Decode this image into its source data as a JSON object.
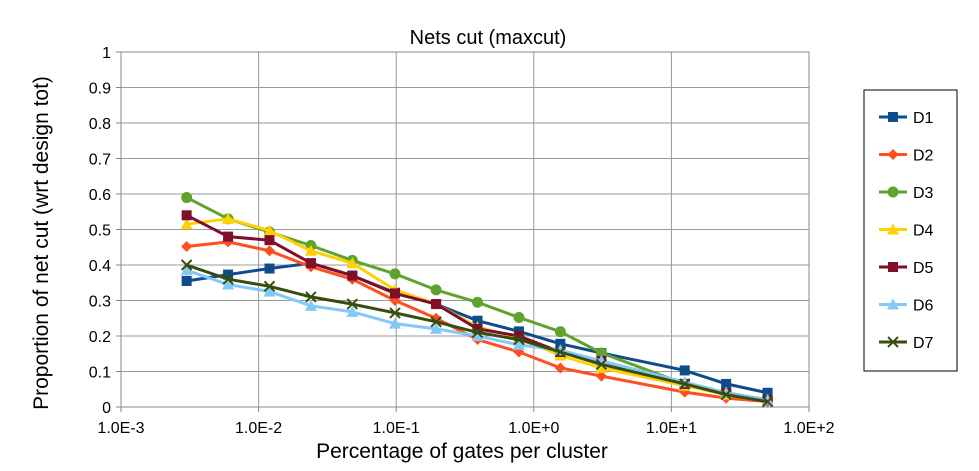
{
  "chart_data": {
    "type": "line",
    "title": "Nets cut (maxcut)",
    "xlabel": "Percentage of gates per cluster",
    "ylabel": "Proportion of net cut (wrt design tot)",
    "x_scale": "log",
    "xlim": [
      0.001,
      100
    ],
    "ylim": [
      0,
      1
    ],
    "x_tick_labels": [
      "1.0E-3",
      "1.0E-2",
      "1.0E-1",
      "1.0E+0",
      "1.0E+1",
      "1.0E+2"
    ],
    "y_tick_labels": [
      "0",
      "0.1",
      "0.2",
      "0.3",
      "0.4",
      "0.5",
      "0.6",
      "0.7",
      "0.8",
      "0.9",
      "1"
    ],
    "grid": true,
    "legend_position": "right",
    "x": [
      0.003,
      0.006,
      0.012,
      0.024,
      0.048,
      0.098,
      0.195,
      0.39,
      0.78,
      1.56,
      3.1,
      12.5,
      25,
      50
    ],
    "series": [
      {
        "name": "D1",
        "color": "#0e4c8c",
        "marker": "square",
        "values": [
          0.355,
          0.373,
          0.39,
          0.405,
          0.37,
          0.322,
          0.29,
          0.243,
          0.213,
          0.178,
          0.152,
          0.103,
          0.065,
          0.04
        ]
      },
      {
        "name": "D2",
        "color": "#ff4e1f",
        "marker": "diamond",
        "values": [
          0.452,
          0.465,
          0.44,
          0.395,
          0.36,
          0.3,
          0.25,
          0.19,
          0.155,
          0.11,
          0.087,
          0.042,
          0.025,
          0.015
        ]
      },
      {
        "name": "D3",
        "color": "#5fa32d",
        "marker": "circle",
        "values": [
          0.59,
          0.53,
          0.493,
          0.455,
          0.413,
          0.375,
          0.33,
          0.295,
          0.252,
          0.212,
          0.152,
          0.065,
          0.04,
          0.02
        ]
      },
      {
        "name": "D4",
        "color": "#ffd100",
        "marker": "triangle",
        "values": [
          0.515,
          0.53,
          0.497,
          0.44,
          0.405,
          0.33,
          0.29,
          0.225,
          0.195,
          0.145,
          0.11,
          0.06,
          0.035,
          0.02
        ]
      },
      {
        "name": "D5",
        "color": "#7f0e2a",
        "marker": "square",
        "values": [
          0.54,
          0.48,
          0.47,
          0.405,
          0.37,
          0.32,
          0.29,
          0.22,
          0.2,
          0.155,
          0.13,
          0.065,
          0.04,
          0.02
        ]
      },
      {
        "name": "D6",
        "color": "#83c9f5",
        "marker": "triangle",
        "values": [
          0.385,
          0.345,
          0.325,
          0.285,
          0.268,
          0.235,
          0.22,
          0.2,
          0.175,
          0.16,
          0.13,
          0.07,
          0.04,
          0.02
        ]
      },
      {
        "name": "D7",
        "color": "#374d10",
        "marker": "x",
        "values": [
          0.4,
          0.36,
          0.34,
          0.31,
          0.29,
          0.265,
          0.24,
          0.21,
          0.19,
          0.155,
          0.12,
          0.065,
          0.035,
          0.015
        ]
      }
    ]
  }
}
